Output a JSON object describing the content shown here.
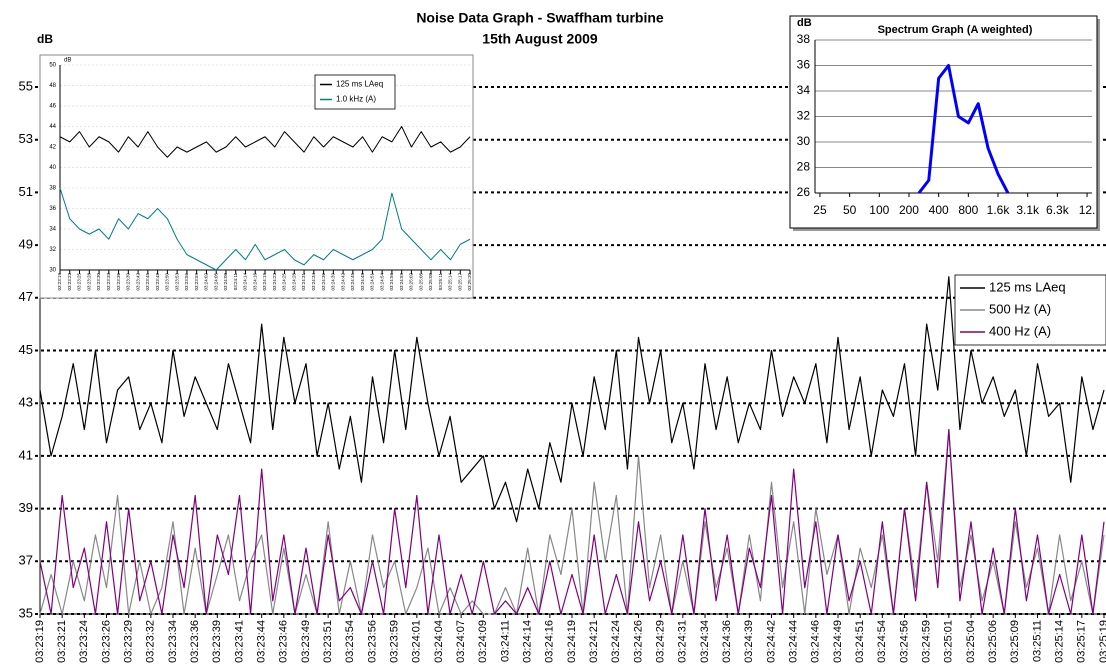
{
  "chart_data": [
    {
      "type": "line",
      "title": "Noise Data Graph - Swaffham turbine",
      "subtitle": "15th August 2009",
      "y_label": "dB",
      "categories": [
        "03:23:19",
        null,
        "03:23:21",
        null,
        "03:23:24",
        null,
        "03:23:26",
        null,
        "03:23:29",
        null,
        "03:23:32",
        null,
        "03:23:34",
        null,
        "03:23:36",
        null,
        "03:23:39",
        null,
        "03:23:41",
        null,
        "03:23:44",
        null,
        "03:23:46",
        null,
        "03:23:49",
        null,
        "03:23:51",
        null,
        "03:23:54",
        null,
        "03:23:56",
        null,
        "03:23:59",
        null,
        "03:24:01",
        null,
        "03:24:04",
        null,
        "03:24:07",
        null,
        "03:24:09",
        null,
        "03:24:11",
        null,
        "03:24:14",
        null,
        "03:24:16",
        null,
        "03:24:19",
        null,
        "03:24:21",
        null,
        "03:24:24",
        null,
        "03:24:26",
        null,
        "03:24:29",
        null,
        "03:24:31",
        null,
        "03:24:34",
        null,
        "03:24:36",
        null,
        "03:24:39",
        null,
        "03:24:42",
        null,
        "03:24:44",
        null,
        "03:24:46",
        null,
        "03:24:49",
        null,
        "03:24:51",
        null,
        "03:24:54",
        null,
        "03:24:56",
        null,
        "03:24:59",
        null,
        "03:25:01",
        null,
        "03:25:04",
        null,
        "03:25:06",
        null,
        "03:25:09",
        null,
        "03:25:11",
        null,
        "03:25:14",
        null,
        "03:25:17",
        null,
        "03:25:19"
      ],
      "series": [
        {
          "name": "125 ms LAeq",
          "color": "#000000",
          "values": [
            43.5,
            41,
            42.5,
            44.5,
            42,
            45,
            41.5,
            43.5,
            44,
            42,
            43,
            41.5,
            45,
            42.5,
            44,
            43,
            42,
            44.5,
            43,
            41.5,
            46,
            42,
            45.5,
            43,
            44.5,
            41,
            43,
            40.5,
            42.5,
            40,
            44,
            41.5,
            45,
            42,
            45.5,
            43,
            41,
            42.5,
            40,
            40.5,
            41,
            39,
            40,
            38.5,
            40.5,
            39,
            41.5,
            40,
            43,
            41,
            44,
            42,
            45,
            40.5,
            45.5,
            43,
            45,
            41.5,
            43,
            40.5,
            44.5,
            42,
            44,
            41.5,
            43,
            42,
            45,
            42.5,
            44,
            43,
            44.5,
            41.5,
            45.5,
            42,
            44,
            41,
            43.5,
            42.5,
            44.5,
            41,
            46,
            43.5,
            47.8,
            42,
            45,
            43,
            44,
            42.5,
            43.5,
            41,
            44.5,
            42.5,
            43,
            40,
            44,
            42,
            43.5
          ]
        },
        {
          "name": "500 Hz (A)",
          "color": "#888888",
          "values": [
            35,
            36.5,
            35,
            37,
            35.5,
            38,
            36,
            39.5,
            35,
            37,
            35,
            36,
            38.5,
            35,
            37.5,
            35,
            36.5,
            38,
            35.5,
            37,
            38,
            35,
            37.5,
            35,
            36.5,
            35,
            38.5,
            35,
            37,
            35,
            38,
            36,
            37,
            35,
            36,
            37.5,
            35,
            36,
            35,
            35.5,
            35,
            35,
            36,
            35,
            37.5,
            35,
            38,
            36.5,
            39,
            35,
            40,
            37,
            39.5,
            35,
            41,
            36,
            38,
            35,
            37,
            35,
            38.5,
            36,
            37.5,
            35,
            38,
            35.5,
            40,
            36,
            38.5,
            35,
            39,
            36.5,
            38,
            35,
            37.5,
            36,
            38,
            35,
            39,
            36,
            40,
            37,
            42,
            36,
            38,
            35.5,
            37,
            35,
            38.5,
            36,
            37.5,
            35,
            38,
            35.5,
            37,
            35,
            38
          ]
        },
        {
          "name": "400 Hz (A)",
          "color": "#800080",
          "values": [
            37,
            35,
            39.5,
            36,
            37.5,
            35,
            38.5,
            35,
            39,
            35.5,
            37,
            35,
            38,
            36,
            39.5,
            35,
            38,
            36.5,
            39.5,
            35,
            40.5,
            35.5,
            38,
            35,
            37.5,
            35,
            38,
            35.5,
            36,
            35,
            37,
            35,
            39,
            36,
            39.5,
            35,
            38,
            35,
            36.5,
            35,
            37,
            35,
            35.5,
            35,
            36,
            35,
            37,
            35,
            36.5,
            35,
            38,
            35,
            36.5,
            35,
            38.5,
            35.5,
            37,
            35,
            38,
            35,
            39,
            35.5,
            38,
            35,
            37.5,
            36,
            39.5,
            35,
            40.5,
            36,
            38.5,
            35,
            38,
            35.5,
            37,
            35,
            38.5,
            35,
            39,
            35.5,
            40,
            36,
            42,
            35.5,
            38.5,
            35,
            37.5,
            35,
            39,
            35.5,
            38,
            35,
            36.5,
            35,
            38,
            35,
            38.5
          ]
        }
      ],
      "ylim": [
        35,
        55
      ],
      "yticks": [
        35,
        37,
        39,
        41,
        43,
        45,
        47,
        49,
        51,
        53,
        55
      ],
      "grid": true
    },
    {
      "type": "line",
      "y_label": "dB",
      "categories": [
        "03:23:19",
        "03:23:22",
        "03:23:25",
        "03:23:28",
        "03:23:30",
        "03:23:33",
        "03:23:36",
        "03:23:39",
        "03:23:42",
        "03:23:45",
        "03:23:48",
        "03:23:50",
        "03:23:53",
        "03:23:56",
        "03:23:59",
        "03:24:02",
        "03:24:05",
        "03:24:08",
        "03:24:11",
        "03:24:14",
        "03:24:16",
        "03:24:19",
        "03:24:22",
        "03:24:25",
        "03:24:28",
        "03:24:31",
        "03:24:34",
        "03:24:36",
        "03:24:39",
        "03:24:42",
        "03:24:45",
        "03:24:48",
        "03:24:51",
        "03:24:54",
        "03:24:56",
        "03:24:59",
        "03:25:02",
        "03:25:05",
        "03:25:08",
        "03:25:11",
        "03:25:14",
        "03:25:17",
        "03:25:20"
      ],
      "series": [
        {
          "name": "125 ms LAeq",
          "color": "#000000",
          "values": [
            43,
            42.5,
            43.5,
            42,
            43,
            42.5,
            41.5,
            43,
            42,
            43.5,
            42,
            41,
            42,
            41.5,
            42,
            42.5,
            41.5,
            42,
            43,
            42,
            42.5,
            43,
            42,
            43.5,
            42.5,
            41.5,
            43,
            42,
            43,
            42.5,
            42,
            43,
            41.5,
            43,
            42.5,
            44,
            42,
            43.5,
            42,
            42.5,
            41.5,
            42,
            43
          ]
        },
        {
          "name": "1.0 kHz (A)",
          "color": "#008080",
          "values": [
            38,
            35,
            34,
            33.5,
            34,
            33,
            35,
            34,
            35.5,
            35,
            36,
            35,
            33,
            31.5,
            31,
            30.5,
            30,
            31,
            32,
            31,
            32.5,
            31,
            31.5,
            32,
            31,
            30.5,
            31.5,
            31,
            32,
            31.5,
            31,
            31.5,
            32,
            33,
            37.5,
            34,
            33,
            32,
            31,
            32,
            31,
            32.5,
            33
          ]
        }
      ],
      "ylim": [
        30,
        50
      ],
      "yticks": [
        30,
        32,
        34,
        36,
        38,
        40,
        42,
        44,
        46,
        48,
        50
      ],
      "grid": true
    },
    {
      "type": "line",
      "title": "Spectrum Graph (A weighted)",
      "y_label": "dB",
      "categories": [
        "25",
        null,
        null,
        "50",
        null,
        null,
        "100",
        null,
        null,
        "200",
        null,
        null,
        "400",
        null,
        null,
        "800",
        null,
        null,
        "1.6k",
        null,
        null,
        "3.1k",
        null,
        null,
        "6.3k",
        null,
        null,
        "12."
      ],
      "values": [
        null,
        null,
        null,
        null,
        null,
        null,
        null,
        null,
        null,
        null,
        26,
        27,
        35,
        36,
        32,
        31.5,
        33,
        29.5,
        27.5,
        26,
        null,
        null,
        null,
        null,
        null,
        null,
        null,
        null
      ],
      "color": "#0000ff",
      "ylim": [
        26,
        38
      ],
      "yticks": [
        26,
        28,
        30,
        32,
        34,
        36,
        38
      ],
      "grid": true
    }
  ]
}
